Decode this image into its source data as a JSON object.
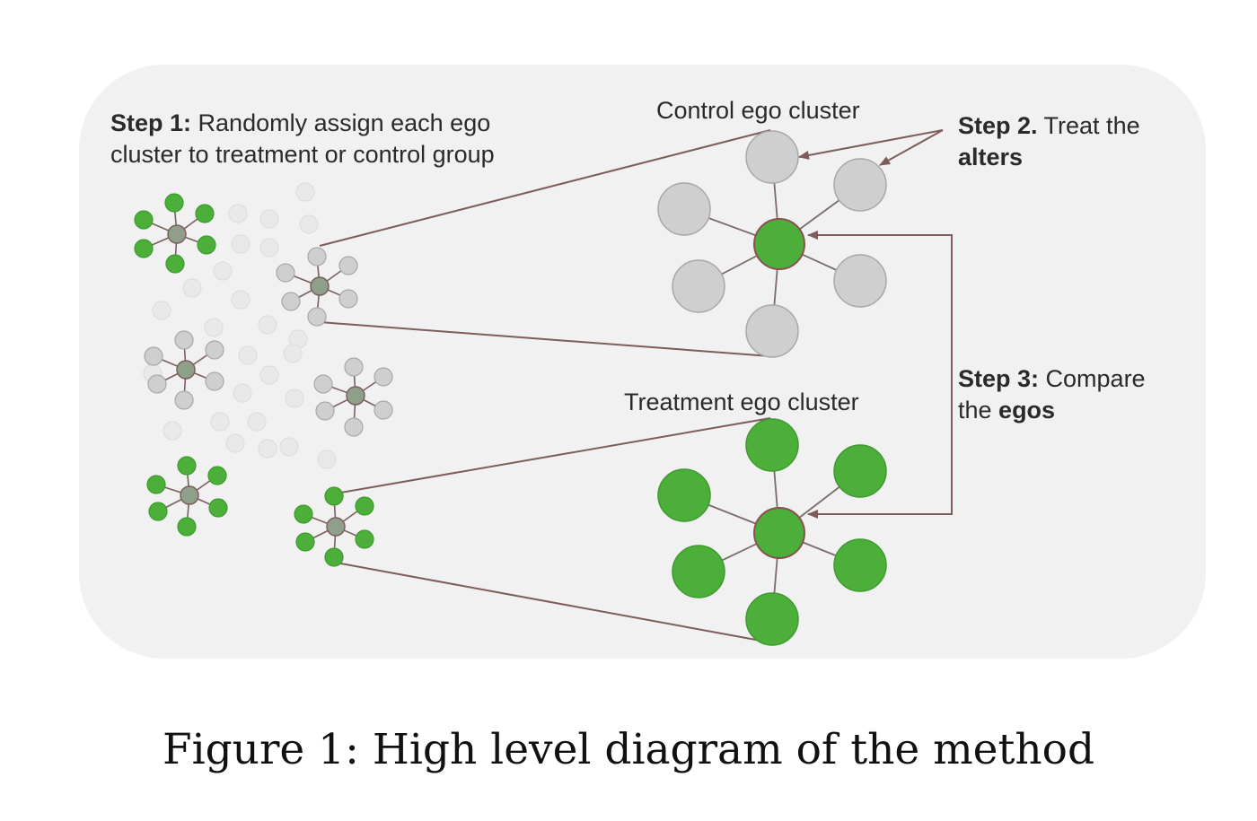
{
  "labels": {
    "step1_bold": "Step 1:",
    "step1_rest_line1": " Randomly assign each ego",
    "step1_line2": "cluster to treatment or control group",
    "control_cluster": "Control ego cluster",
    "treatment_cluster": "Treatment ego cluster",
    "step2_bold": "Step 2.",
    "step2_rest": " Treat the",
    "step2_line2_bold": "alters",
    "step3_bold": "Step 3:",
    "step3_rest": " Compare",
    "step3_line2_plain": "the ",
    "step3_line2_bold": "egos"
  },
  "caption": "Figure 1: High level diagram of the method",
  "colors": {
    "panel": "#f1f1f1",
    "green": "#4caf3a",
    "grey_node": "#cfcfcf",
    "faint_node": "#e9e9e9",
    "ego_center": "#8fa08a",
    "connector": "#7d5c5c"
  },
  "clusters": [
    {
      "name": "small-cluster-1",
      "type": "green"
    },
    {
      "name": "small-cluster-2",
      "type": "grey"
    },
    {
      "name": "small-cluster-3",
      "type": "grey"
    },
    {
      "name": "small-cluster-4",
      "type": "grey"
    },
    {
      "name": "small-cluster-5",
      "type": "green"
    },
    {
      "name": "small-cluster-6",
      "type": "green"
    },
    {
      "name": "control-ego-cluster",
      "type": "grey"
    },
    {
      "name": "treatment-ego-cluster",
      "type": "green"
    }
  ]
}
